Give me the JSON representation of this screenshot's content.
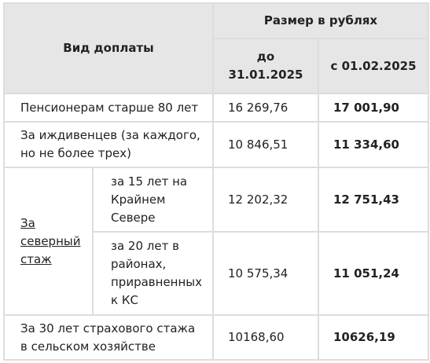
{
  "header": {
    "type_label": "Вид доплаты",
    "size_label": "Размер в рублях",
    "before_label": "до 31.01.2025",
    "after_label": "с 01.02.2025"
  },
  "rows": [
    {
      "label": "Пенсионерам старше 80 лет",
      "before": "16 269,76",
      "after": "17 001,90"
    },
    {
      "label": "За иждивенцев (за каждого, но не более трех)",
      "before": "10 846,51",
      "after": "11 334,60"
    },
    {
      "group_label": "За северный стаж",
      "sub": [
        {
          "label": "за 15 лет на Крайнем Севере",
          "before": "12 202,32",
          "after": "12 751,43"
        },
        {
          "label": "за 20 лет в районах, приравненных к КС",
          "before": "10 575,34",
          "after": "11 051,24"
        }
      ]
    },
    {
      "label": "За 30 лет страхового стажа в сельском хозяйстве",
      "before": "10168,60",
      "after": "10626,19"
    }
  ]
}
